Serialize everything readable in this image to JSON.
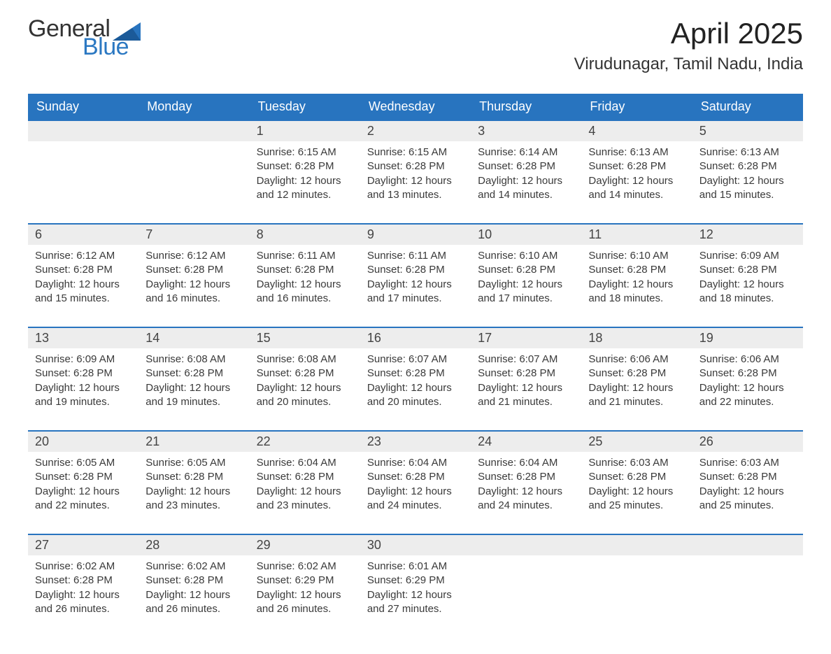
{
  "logo": {
    "general": "General",
    "blue": "Blue"
  },
  "title": "April 2025",
  "location": "Virudunagar, Tamil Nadu, India",
  "colors": {
    "headerBg": "#2874bf",
    "headerText": "#ffffff",
    "dayBg": "#ededed",
    "ruleColor": "#2874bf",
    "bodyText": "#3a3a3a",
    "logoBlue": "#2b78c2"
  },
  "weekdays": [
    "Sunday",
    "Monday",
    "Tuesday",
    "Wednesday",
    "Thursday",
    "Friday",
    "Saturday"
  ],
  "weeks": [
    [
      {
        "day": "",
        "sunrise": "",
        "sunset": "",
        "daylight": ""
      },
      {
        "day": "",
        "sunrise": "",
        "sunset": "",
        "daylight": ""
      },
      {
        "day": "1",
        "sunrise": "Sunrise: 6:15 AM",
        "sunset": "Sunset: 6:28 PM",
        "daylight": "Daylight: 12 hours and 12 minutes."
      },
      {
        "day": "2",
        "sunrise": "Sunrise: 6:15 AM",
        "sunset": "Sunset: 6:28 PM",
        "daylight": "Daylight: 12 hours and 13 minutes."
      },
      {
        "day": "3",
        "sunrise": "Sunrise: 6:14 AM",
        "sunset": "Sunset: 6:28 PM",
        "daylight": "Daylight: 12 hours and 14 minutes."
      },
      {
        "day": "4",
        "sunrise": "Sunrise: 6:13 AM",
        "sunset": "Sunset: 6:28 PM",
        "daylight": "Daylight: 12 hours and 14 minutes."
      },
      {
        "day": "5",
        "sunrise": "Sunrise: 6:13 AM",
        "sunset": "Sunset: 6:28 PM",
        "daylight": "Daylight: 12 hours and 15 minutes."
      }
    ],
    [
      {
        "day": "6",
        "sunrise": "Sunrise: 6:12 AM",
        "sunset": "Sunset: 6:28 PM",
        "daylight": "Daylight: 12 hours and 15 minutes."
      },
      {
        "day": "7",
        "sunrise": "Sunrise: 6:12 AM",
        "sunset": "Sunset: 6:28 PM",
        "daylight": "Daylight: 12 hours and 16 minutes."
      },
      {
        "day": "8",
        "sunrise": "Sunrise: 6:11 AM",
        "sunset": "Sunset: 6:28 PM",
        "daylight": "Daylight: 12 hours and 16 minutes."
      },
      {
        "day": "9",
        "sunrise": "Sunrise: 6:11 AM",
        "sunset": "Sunset: 6:28 PM",
        "daylight": "Daylight: 12 hours and 17 minutes."
      },
      {
        "day": "10",
        "sunrise": "Sunrise: 6:10 AM",
        "sunset": "Sunset: 6:28 PM",
        "daylight": "Daylight: 12 hours and 17 minutes."
      },
      {
        "day": "11",
        "sunrise": "Sunrise: 6:10 AM",
        "sunset": "Sunset: 6:28 PM",
        "daylight": "Daylight: 12 hours and 18 minutes."
      },
      {
        "day": "12",
        "sunrise": "Sunrise: 6:09 AM",
        "sunset": "Sunset: 6:28 PM",
        "daylight": "Daylight: 12 hours and 18 minutes."
      }
    ],
    [
      {
        "day": "13",
        "sunrise": "Sunrise: 6:09 AM",
        "sunset": "Sunset: 6:28 PM",
        "daylight": "Daylight: 12 hours and 19 minutes."
      },
      {
        "day": "14",
        "sunrise": "Sunrise: 6:08 AM",
        "sunset": "Sunset: 6:28 PM",
        "daylight": "Daylight: 12 hours and 19 minutes."
      },
      {
        "day": "15",
        "sunrise": "Sunrise: 6:08 AM",
        "sunset": "Sunset: 6:28 PM",
        "daylight": "Daylight: 12 hours and 20 minutes."
      },
      {
        "day": "16",
        "sunrise": "Sunrise: 6:07 AM",
        "sunset": "Sunset: 6:28 PM",
        "daylight": "Daylight: 12 hours and 20 minutes."
      },
      {
        "day": "17",
        "sunrise": "Sunrise: 6:07 AM",
        "sunset": "Sunset: 6:28 PM",
        "daylight": "Daylight: 12 hours and 21 minutes."
      },
      {
        "day": "18",
        "sunrise": "Sunrise: 6:06 AM",
        "sunset": "Sunset: 6:28 PM",
        "daylight": "Daylight: 12 hours and 21 minutes."
      },
      {
        "day": "19",
        "sunrise": "Sunrise: 6:06 AM",
        "sunset": "Sunset: 6:28 PM",
        "daylight": "Daylight: 12 hours and 22 minutes."
      }
    ],
    [
      {
        "day": "20",
        "sunrise": "Sunrise: 6:05 AM",
        "sunset": "Sunset: 6:28 PM",
        "daylight": "Daylight: 12 hours and 22 minutes."
      },
      {
        "day": "21",
        "sunrise": "Sunrise: 6:05 AM",
        "sunset": "Sunset: 6:28 PM",
        "daylight": "Daylight: 12 hours and 23 minutes."
      },
      {
        "day": "22",
        "sunrise": "Sunrise: 6:04 AM",
        "sunset": "Sunset: 6:28 PM",
        "daylight": "Daylight: 12 hours and 23 minutes."
      },
      {
        "day": "23",
        "sunrise": "Sunrise: 6:04 AM",
        "sunset": "Sunset: 6:28 PM",
        "daylight": "Daylight: 12 hours and 24 minutes."
      },
      {
        "day": "24",
        "sunrise": "Sunrise: 6:04 AM",
        "sunset": "Sunset: 6:28 PM",
        "daylight": "Daylight: 12 hours and 24 minutes."
      },
      {
        "day": "25",
        "sunrise": "Sunrise: 6:03 AM",
        "sunset": "Sunset: 6:28 PM",
        "daylight": "Daylight: 12 hours and 25 minutes."
      },
      {
        "day": "26",
        "sunrise": "Sunrise: 6:03 AM",
        "sunset": "Sunset: 6:28 PM",
        "daylight": "Daylight: 12 hours and 25 minutes."
      }
    ],
    [
      {
        "day": "27",
        "sunrise": "Sunrise: 6:02 AM",
        "sunset": "Sunset: 6:28 PM",
        "daylight": "Daylight: 12 hours and 26 minutes."
      },
      {
        "day": "28",
        "sunrise": "Sunrise: 6:02 AM",
        "sunset": "Sunset: 6:28 PM",
        "daylight": "Daylight: 12 hours and 26 minutes."
      },
      {
        "day": "29",
        "sunrise": "Sunrise: 6:02 AM",
        "sunset": "Sunset: 6:29 PM",
        "daylight": "Daylight: 12 hours and 26 minutes."
      },
      {
        "day": "30",
        "sunrise": "Sunrise: 6:01 AM",
        "sunset": "Sunset: 6:29 PM",
        "daylight": "Daylight: 12 hours and 27 minutes."
      },
      {
        "day": "",
        "sunrise": "",
        "sunset": "",
        "daylight": ""
      },
      {
        "day": "",
        "sunrise": "",
        "sunset": "",
        "daylight": ""
      },
      {
        "day": "",
        "sunrise": "",
        "sunset": "",
        "daylight": ""
      }
    ]
  ]
}
